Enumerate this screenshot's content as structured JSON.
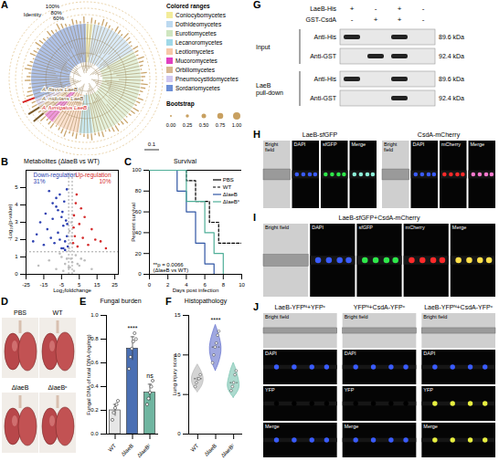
{
  "chart_data": [
    {
      "letter": "B",
      "type": "scatter",
      "title": "Metabolites (ΔlaeB vs WT)",
      "x_label": "Log₂foldchange",
      "y_label": "-Log₁₀(p-value)",
      "xlim": [
        -25,
        27
      ],
      "xticks": [
        -25,
        -15,
        -5,
        5,
        15,
        25
      ],
      "ylim": [
        0,
        6
      ],
      "yticks": [
        0,
        1,
        2,
        3,
        4,
        5
      ],
      "thresholds": {
        "x": [
          -1,
          1
        ],
        "y": 1.3
      },
      "annotations": [
        {
          "lines": [
            "Down-regulation",
            "31%"
          ],
          "color": "#2b3fb0"
        },
        {
          "lines": [
            "Up-regulation",
            "10%"
          ],
          "color": "#d42a2a"
        }
      ],
      "series": [
        {
          "color": "#2b3fb0",
          "x": [
            -1.5,
            -2,
            -2.5,
            -3,
            -3.5,
            -4,
            -4.5,
            -5,
            -6,
            -7,
            -8,
            -9,
            -10,
            -11,
            -12,
            -13,
            -14,
            -15,
            -17,
            -19,
            -21,
            -2,
            -3,
            -5,
            -6,
            -8,
            -1.8,
            -4,
            -7,
            -10
          ],
          "y": [
            1.6,
            2.2,
            3.1,
            1.9,
            4.2,
            2.8,
            3.6,
            1.5,
            4.6,
            2.4,
            3.9,
            1.8,
            3.2,
            2.1,
            4.8,
            2.6,
            3.5,
            1.7,
            3,
            2.3,
            1.9,
            4.9,
            1.4,
            3.3,
            2,
            4.4,
            2.9,
            1.5,
            3.7,
            4.1
          ]
        },
        {
          "color": "#d42a2a",
          "x": [
            1.5,
            2,
            2.5,
            3,
            4,
            5,
            6,
            7,
            8,
            10,
            12,
            14,
            17,
            20,
            3.5,
            1.8
          ],
          "y": [
            1.8,
            3.4,
            2.2,
            4.1,
            1.6,
            2.9,
            3.8,
            2.1,
            3.3,
            1.7,
            2.6,
            2,
            1.9,
            1.5,
            4.6,
            2.7
          ]
        },
        {
          "color": "#bdbdbd",
          "x": [
            -18,
            -12,
            -8,
            -5,
            -3,
            -2,
            -1,
            -0.5,
            0,
            0.5,
            1,
            2,
            3,
            5,
            8,
            12,
            -0.8,
            0.3,
            0.7,
            -0.3,
            -4,
            4,
            -6,
            6
          ],
          "y": [
            0.5,
            0.8,
            0.3,
            1,
            0.6,
            0.9,
            0.4,
            2.5,
            1.8,
            3,
            0.7,
            0.2,
            1.1,
            0.5,
            0.8,
            0.3,
            1.5,
            0.9,
            2.2,
            0.4,
            0.2,
            0.6,
            1.2,
            0.9
          ]
        }
      ]
    },
    {
      "letter": "C",
      "type": "line",
      "title": "Survival",
      "x_label": "Days post infection",
      "y_label": "Percent survival",
      "xlim": [
        0,
        10
      ],
      "xticks": [
        0,
        2,
        4,
        6,
        8,
        10
      ],
      "ylim": [
        0,
        100
      ],
      "yticks": [
        0,
        20,
        40,
        60,
        80,
        100
      ],
      "legend": "top-right",
      "annotation": [
        "**p = 0.0066",
        "(ΔlaeB vs WT)"
      ],
      "series": [
        {
          "name": "PBS",
          "color": "#000000",
          "line_style": "solid",
          "x": [
            0,
            10
          ],
          "values": [
            100,
            100
          ]
        },
        {
          "name": "WT",
          "color": "#000000",
          "line_style": "dashed",
          "x": [
            0,
            4,
            5,
            6.5,
            7.5,
            10
          ],
          "values": [
            100,
            90,
            70,
            50,
            30,
            30
          ]
        },
        {
          "name": "ΔlaeB",
          "color": "#2f55a4",
          "line_style": "solid",
          "x": [
            0,
            3,
            4,
            5,
            6,
            7
          ],
          "values": [
            100,
            80,
            60,
            30,
            10,
            0
          ]
        },
        {
          "name": "ΔlaeBᶜ",
          "color": "#4fae98",
          "line_style": "solid",
          "x": [
            0,
            4,
            6,
            7,
            8
          ],
          "values": [
            100,
            70,
            40,
            20,
            0
          ]
        }
      ]
    },
    {
      "letter": "E",
      "type": "bar",
      "title": "Fungal burden",
      "y_label": "Fungal DNA of total DNA (ng/mg)",
      "categories": [
        "WT",
        "ΔlaeB",
        "ΔlaeBᶜ"
      ],
      "values": [
        0.2,
        0.72,
        0.35
      ],
      "errors": [
        0.05,
        0.1,
        0.07
      ],
      "points": [
        [
          0.12,
          0.18,
          0.22,
          0.25,
          0.28
        ],
        [
          0.55,
          0.65,
          0.72,
          0.78,
          0.85,
          0.8
        ],
        [
          0.25,
          0.3,
          0.35,
          0.4,
          0.45
        ]
      ],
      "colors": [
        "#e6e6e6",
        "#4a6fb3",
        "#6fb5a0"
      ],
      "ylim": [
        0,
        1
      ],
      "yticks": [
        {
          "value": 0,
          "label": "0.0"
        },
        {
          "value": 0.2,
          "label": "0.2"
        },
        {
          "value": 0.4,
          "label": "0.4"
        },
        {
          "value": 0.6,
          "label": "0.6"
        },
        {
          "value": 0.8,
          "label": "0.8"
        },
        {
          "value": 1,
          "label": "1.0"
        }
      ],
      "significance": [
        {
          "category": "ΔlaeB",
          "label": "****"
        },
        {
          "category": "ΔlaeBᶜ",
          "label": "ns"
        }
      ]
    },
    {
      "letter": "F",
      "type": "violin",
      "title": "Histopathology",
      "y_label": "Lung injury score",
      "categories": [
        "WT",
        "ΔlaeB",
        "ΔlaeBᶜ"
      ],
      "colors": [
        "#bdbdbd",
        "#6d79d0",
        "#7fc6b4"
      ],
      "points": [
        [
          6,
          6.5,
          7,
          7,
          7.5
        ],
        [
          9,
          10,
          11,
          11.5,
          12.5,
          13
        ],
        [
          5.5,
          6,
          6.5,
          7.5,
          8
        ]
      ],
      "medians": [
        7,
        11,
        6.5
      ],
      "violin": [
        {
          "y": [
            5.3,
            6,
            6.8,
            7.5,
            8.2,
            8.8
          ],
          "width": [
            0,
            0.25,
            0.35,
            0.3,
            0.15,
            0
          ]
        },
        {
          "y": [
            8,
            9,
            10.5,
            11.5,
            12.5,
            13.8
          ],
          "width": [
            0,
            0.2,
            0.35,
            0.3,
            0.2,
            0
          ]
        },
        {
          "y": [
            4.6,
            5.5,
            6.3,
            7.2,
            8.2,
            9
          ],
          "width": [
            0,
            0.3,
            0.35,
            0.25,
            0.15,
            0
          ]
        }
      ],
      "ylim": [
        0,
        15
      ],
      "yticks": [
        0,
        5,
        10,
        15
      ],
      "significance": [
        {
          "category": "ΔlaeB",
          "label": "****"
        }
      ]
    }
  ],
  "panel_A": {
    "letter": "A",
    "identity": {
      "title": "Identity",
      "rings": [
        "100%",
        "80%",
        "60%"
      ]
    },
    "colored_ranges": {
      "title": "Colored ranges",
      "items": [
        {
          "label": "Coniocybomycetes",
          "color": "#f3ec9a"
        },
        {
          "label": "Dothideomycetes",
          "color": "#bcd9f0"
        },
        {
          "label": "Eurotiomycetes",
          "color": "#cfe6c0"
        },
        {
          "label": "Lecanoromycetes",
          "color": "#9fd8e8"
        },
        {
          "label": "Leotiomycetes",
          "color": "#f7c8a8"
        },
        {
          "label": "Mucoromycetes",
          "color": "#e040c0"
        },
        {
          "label": "Orbiliomycetes",
          "color": "#d8b890"
        },
        {
          "label": "Pneumocystidomycetes",
          "color": "#d0c8f0"
        },
        {
          "label": "Sordariomycetes",
          "color": "#6d8fd6"
        }
      ]
    },
    "bootstrap": {
      "title": "Bootstrap",
      "ticks": [
        {
          "value": 0,
          "label": "0.00"
        },
        {
          "value": 0.25,
          "label": "0.25"
        },
        {
          "value": 0.5,
          "label": "0.50"
        },
        {
          "value": 0.75,
          "label": "0.75"
        },
        {
          "value": 1,
          "label": "1.00"
        }
      ]
    },
    "highlighted": [
      {
        "label": "A. flavus LaeB",
        "color": "#7a5a2a"
      },
      {
        "label": "A. nidulans LaeB",
        "color": "#7a5a2a"
      },
      {
        "label": "A. fumigatus LaeB",
        "color": "#d62020"
      }
    ],
    "scale_bar": "0.1"
  },
  "panel_D": {
    "letter": "D",
    "labels": [
      "PBS",
      "WT",
      "ΔlaeB",
      "ΔlaeBᶜ"
    ]
  },
  "panel_G": {
    "letter": "G",
    "treatments": [
      {
        "label": "LaeB-His",
        "signs": [
          "+",
          "-",
          "+",
          "-"
        ]
      },
      {
        "label": "GST-CsdA",
        "signs": [
          "-",
          "+",
          "+",
          "-"
        ]
      }
    ],
    "groups": [
      {
        "label": "Input",
        "blots": [
          {
            "label": "Anti-His",
            "bands": [
              true,
              false,
              true,
              false
            ],
            "size": "89.6 kDa"
          },
          {
            "label": "Anti-GST",
            "bands": [
              false,
              true,
              true,
              false
            ],
            "size": "92.4 kDa"
          }
        ]
      },
      {
        "label": "LaeB pull-down",
        "blots": [
          {
            "label": "Anti-His",
            "bands": [
              true,
              false,
              true,
              false
            ],
            "size": "89.6 kDa"
          },
          {
            "label": "Anti-GST",
            "bands": [
              false,
              false,
              true,
              false
            ],
            "size": "92.4 kDa"
          }
        ]
      }
    ]
  },
  "panel_H": {
    "letter": "H",
    "panels": [
      {
        "title": "LaeB-sfGFP",
        "tiles": [
          {
            "label": "Bright field",
            "color": "#cfcfcf"
          },
          {
            "label": "DAPI",
            "color": "#3a5cff"
          },
          {
            "label": "sfGFP",
            "color": "#2ee84a"
          },
          {
            "label": "Merge",
            "color": "#8cf0d8"
          }
        ]
      },
      {
        "title": "CsdA-mCherry",
        "tiles": [
          {
            "label": "Bright field",
            "color": "#cfcfcf"
          },
          {
            "label": "DAPI",
            "color": "#3a5cff"
          },
          {
            "label": "mCherry",
            "color": "#ff2a2a"
          },
          {
            "label": "Merge",
            "color": "#ff7ad0"
          }
        ]
      }
    ]
  },
  "panel_I": {
    "letter": "I",
    "panels": [
      {
        "title": "LaeB-sfGFP+CsdA-mCherry",
        "tiles": [
          {
            "label": "Bright field",
            "color": "#cfcfcf"
          },
          {
            "label": "DAPI",
            "color": "#3a5cff"
          },
          {
            "label": "sfGFP",
            "color": "#2ee84a"
          },
          {
            "label": "mCherry",
            "color": "#ff2a2a"
          },
          {
            "label": "Merge",
            "color": "#ffe04a"
          }
        ]
      }
    ]
  },
  "panel_J": {
    "letter": "J",
    "panels": [
      {
        "title": "LaeB-YFPᴺ+YFPᶜ",
        "tiles": [
          {
            "label": "Bright field",
            "color": "#cfcfcf"
          },
          {
            "label": "DAPI",
            "color": "#3a5cff"
          },
          {
            "label": "YFP",
            "color": "#000000"
          },
          {
            "label": "Merge",
            "color": "#3a5cff"
          }
        ]
      },
      {
        "title": "YFPᴺ+CsdA-YFPᶜ",
        "tiles": [
          {
            "label": "Bright field",
            "color": "#cfcfcf"
          },
          {
            "label": "DAPI",
            "color": "#3a5cff"
          },
          {
            "label": "YFP",
            "color": "#000000"
          },
          {
            "label": "Merge",
            "color": "#3a5cff"
          }
        ]
      },
      {
        "title": "LaeB-YFPᴺ+CsdA-YFPᶜ",
        "tiles": [
          {
            "label": "Bright field",
            "color": "#cfcfcf"
          },
          {
            "label": "DAPI",
            "color": "#3a5cff"
          },
          {
            "label": "YFP",
            "color": "#e8f040"
          },
          {
            "label": "Merge",
            "color": "#e8f040"
          }
        ]
      }
    ]
  }
}
